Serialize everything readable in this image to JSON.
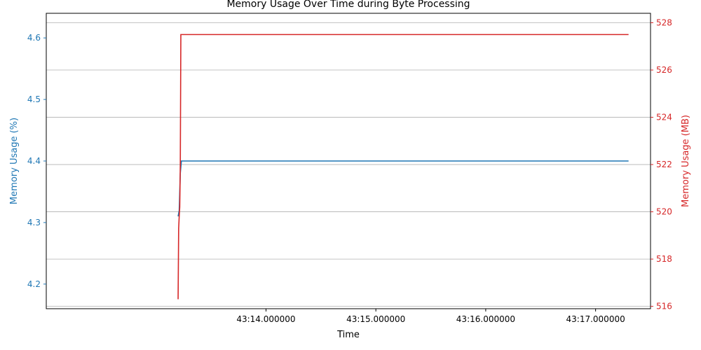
{
  "chart_data": {
    "type": "line",
    "title": "Memory Usage Over Time during Byte Processing",
    "xlabel": "Time",
    "x_ticks": [
      "43:14.000000",
      "43:15.000000",
      "43:16.000000",
      "43:17.000000"
    ],
    "x_tick_values": [
      14.0,
      15.0,
      16.0,
      17.0
    ],
    "xlim": [
      12.0,
      17.5
    ],
    "grid": "horizontal lines from right axis",
    "left_axis": {
      "label": "Memory Usage (%)",
      "color": "#1f77b4",
      "ylim": [
        4.16,
        4.64
      ],
      "ticks": [
        "4.2",
        "4.3",
        "4.4",
        "4.5",
        "4.6"
      ],
      "tick_values": [
        4.2,
        4.3,
        4.4,
        4.5,
        4.6
      ]
    },
    "right_axis": {
      "label": "Memory Usage (MB)",
      "color": "#d62728",
      "ylim": [
        515.9,
        528.4
      ],
      "ticks": [
        "516",
        "518",
        "520",
        "522",
        "524",
        "526",
        "528"
      ],
      "tick_values": [
        516,
        518,
        520,
        522,
        524,
        526,
        528
      ]
    },
    "series": [
      {
        "axis": "left",
        "color": "#1f77b4",
        "x": [
          13.2,
          13.21,
          13.215,
          13.22,
          13.23,
          17.3
        ],
        "values": [
          4.31,
          4.32,
          4.35,
          4.38,
          4.4,
          4.4
        ]
      },
      {
        "axis": "right",
        "color": "#d62728",
        "x": [
          13.2,
          13.205,
          13.21,
          13.215,
          13.22,
          13.225,
          13.23,
          17.3
        ],
        "values": [
          516.3,
          519.3,
          519.8,
          520.2,
          522.0,
          527.5,
          527.5,
          527.5
        ]
      }
    ]
  }
}
